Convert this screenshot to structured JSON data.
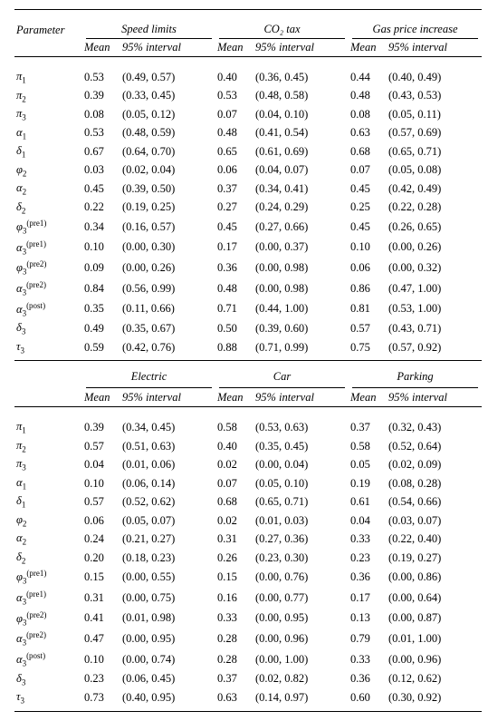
{
  "headers": {
    "parameter": "Parameter",
    "mean": "Mean",
    "interval": "95% interval"
  },
  "blocks": [
    {
      "groups": [
        "Speed limits",
        "CO₂ tax",
        "Gas price increase"
      ],
      "rows": [
        {
          "p": "π<sub>1</sub>",
          "v": [
            [
              "0.53",
              "(0.49, 0.57)"
            ],
            [
              "0.40",
              "(0.36, 0.45)"
            ],
            [
              "0.44",
              "(0.40, 0.49)"
            ]
          ]
        },
        {
          "p": "π<sub>2</sub>",
          "v": [
            [
              "0.39",
              "(0.33, 0.45)"
            ],
            [
              "0.53",
              "(0.48, 0.58)"
            ],
            [
              "0.48",
              "(0.43, 0.53)"
            ]
          ]
        },
        {
          "p": "π<sub>3</sub>",
          "v": [
            [
              "0.08",
              "(0.05, 0.12)"
            ],
            [
              "0.07",
              "(0.04, 0.10)"
            ],
            [
              "0.08",
              "(0.05, 0.11)"
            ]
          ]
        },
        {
          "p": "α<sub>1</sub>",
          "v": [
            [
              "0.53",
              "(0.48, 0.59)"
            ],
            [
              "0.48",
              "(0.41, 0.54)"
            ],
            [
              "0.63",
              "(0.57, 0.69)"
            ]
          ]
        },
        {
          "p": "δ<sub>1</sub>",
          "v": [
            [
              "0.67",
              "(0.64, 0.70)"
            ],
            [
              "0.65",
              "(0.61, 0.69)"
            ],
            [
              "0.68",
              "(0.65, 0.71)"
            ]
          ]
        },
        {
          "p": "φ<sub>2</sub>",
          "v": [
            [
              "0.03",
              "(0.02, 0.04)"
            ],
            [
              "0.06",
              "(0.04, 0.07)"
            ],
            [
              "0.07",
              "(0.05, 0.08)"
            ]
          ]
        },
        {
          "p": "α<sub>2</sub>",
          "v": [
            [
              "0.45",
              "(0.39, 0.50)"
            ],
            [
              "0.37",
              "(0.34, 0.41)"
            ],
            [
              "0.45",
              "(0.42, 0.49)"
            ]
          ]
        },
        {
          "p": "δ<sub>2</sub>",
          "v": [
            [
              "0.22",
              "(0.19, 0.25)"
            ],
            [
              "0.27",
              "(0.24, 0.29)"
            ],
            [
              "0.25",
              "(0.22, 0.28)"
            ]
          ]
        },
        {
          "p": "φ<sub>3</sub><sup>(pre1)</sup>",
          "v": [
            [
              "0.34",
              "(0.16, 0.57)"
            ],
            [
              "0.45",
              "(0.27, 0.66)"
            ],
            [
              "0.45",
              "(0.26, 0.65)"
            ]
          ]
        },
        {
          "p": "α<sub>3</sub><sup>(pre1)</sup>",
          "v": [
            [
              "0.10",
              "(0.00, 0.30)"
            ],
            [
              "0.17",
              "(0.00, 0.37)"
            ],
            [
              "0.10",
              "(0.00, 0.26)"
            ]
          ]
        },
        {
          "p": "φ<sub>3</sub><sup>(pre2)</sup>",
          "v": [
            [
              "0.09",
              "(0.00, 0.26)"
            ],
            [
              "0.36",
              "(0.00, 0.98)"
            ],
            [
              "0.06",
              "(0.00, 0.32)"
            ]
          ]
        },
        {
          "p": "α<sub>3</sub><sup>(pre2)</sup>",
          "v": [
            [
              "0.84",
              "(0.56, 0.99)"
            ],
            [
              "0.48",
              "(0.00, 0.98)"
            ],
            [
              "0.86",
              "(0.47, 1.00)"
            ]
          ]
        },
        {
          "p": "α<sub>3</sub><sup>(post)</sup>",
          "v": [
            [
              "0.35",
              "(0.11, 0.66)"
            ],
            [
              "0.71",
              "(0.44, 1.00)"
            ],
            [
              "0.81",
              "(0.53, 1.00)"
            ]
          ]
        },
        {
          "p": "δ<sub>3</sub>",
          "v": [
            [
              "0.49",
              "(0.35, 0.67)"
            ],
            [
              "0.50",
              "(0.39, 0.60)"
            ],
            [
              "0.57",
              "(0.43, 0.71)"
            ]
          ]
        },
        {
          "p": "τ<sub>3</sub>",
          "v": [
            [
              "0.59",
              "(0.42, 0.76)"
            ],
            [
              "0.88",
              "(0.71, 0.99)"
            ],
            [
              "0.75",
              "(0.57, 0.92)"
            ]
          ]
        }
      ]
    },
    {
      "groups": [
        "Electric",
        "Car",
        "Parking"
      ],
      "rows": [
        {
          "p": "π<sub>1</sub>",
          "v": [
            [
              "0.39",
              "(0.34, 0.45)"
            ],
            [
              "0.58",
              "(0.53, 0.63)"
            ],
            [
              "0.37",
              "(0.32, 0.43)"
            ]
          ]
        },
        {
          "p": "π<sub>2</sub>",
          "v": [
            [
              "0.57",
              "(0.51, 0.63)"
            ],
            [
              "0.40",
              "(0.35, 0.45)"
            ],
            [
              "0.58",
              "(0.52, 0.64)"
            ]
          ]
        },
        {
          "p": "π<sub>3</sub>",
          "v": [
            [
              "0.04",
              "(0.01, 0.06)"
            ],
            [
              "0.02",
              "(0.00, 0.04)"
            ],
            [
              "0.05",
              "(0.02, 0.09)"
            ]
          ]
        },
        {
          "p": "α<sub>1</sub>",
          "v": [
            [
              "0.10",
              "(0.06, 0.14)"
            ],
            [
              "0.07",
              "(0.05, 0.10)"
            ],
            [
              "0.19",
              "(0.08, 0.28)"
            ]
          ]
        },
        {
          "p": "δ<sub>1</sub>",
          "v": [
            [
              "0.57",
              "(0.52, 0.62)"
            ],
            [
              "0.68",
              "(0.65, 0.71)"
            ],
            [
              "0.61",
              "(0.54, 0.66)"
            ]
          ]
        },
        {
          "p": "φ<sub>2</sub>",
          "v": [
            [
              "0.06",
              "(0.05, 0.07)"
            ],
            [
              "0.02",
              "(0.01, 0.03)"
            ],
            [
              "0.04",
              "(0.03, 0.07)"
            ]
          ]
        },
        {
          "p": "α<sub>2</sub>",
          "v": [
            [
              "0.24",
              "(0.21, 0.27)"
            ],
            [
              "0.31",
              "(0.27, 0.36)"
            ],
            [
              "0.33",
              "(0.22, 0.40)"
            ]
          ]
        },
        {
          "p": "δ<sub>2</sub>",
          "v": [
            [
              "0.20",
              "(0.18, 0.23)"
            ],
            [
              "0.26",
              "(0.23, 0.30)"
            ],
            [
              "0.23",
              "(0.19, 0.27)"
            ]
          ]
        },
        {
          "p": "φ<sub>3</sub><sup>(pre1)</sup>",
          "v": [
            [
              "0.15",
              "(0.00, 0.55)"
            ],
            [
              "0.15",
              "(0.00, 0.76)"
            ],
            [
              "0.36",
              "(0.00, 0.86)"
            ]
          ]
        },
        {
          "p": "α<sub>3</sub><sup>(pre1)</sup>",
          "v": [
            [
              "0.31",
              "(0.00, 0.75)"
            ],
            [
              "0.16",
              "(0.00, 0.77)"
            ],
            [
              "0.17",
              "(0.00, 0.64)"
            ]
          ]
        },
        {
          "p": "φ<sub>3</sub><sup>(pre2)</sup>",
          "v": [
            [
              "0.41",
              "(0.01, 0.98)"
            ],
            [
              "0.33",
              "(0.00, 0.95)"
            ],
            [
              "0.13",
              "(0.00, 0.87)"
            ]
          ]
        },
        {
          "p": "α<sub>3</sub><sup>(pre2)</sup>",
          "v": [
            [
              "0.47",
              "(0.00, 0.95)"
            ],
            [
              "0.28",
              "(0.00, 0.96)"
            ],
            [
              "0.79",
              "(0.01, 1.00)"
            ]
          ]
        },
        {
          "p": "α<sub>3</sub><sup>(post)</sup>",
          "v": [
            [
              "0.10",
              "(0.00, 0.74)"
            ],
            [
              "0.28",
              "(0.00, 1.00)"
            ],
            [
              "0.33",
              "(0.00, 0.96)"
            ]
          ]
        },
        {
          "p": "δ<sub>3</sub>",
          "v": [
            [
              "0.23",
              "(0.06, 0.45)"
            ],
            [
              "0.37",
              "(0.02, 0.82)"
            ],
            [
              "0.36",
              "(0.12, 0.62)"
            ]
          ]
        },
        {
          "p": "τ<sub>3</sub>",
          "v": [
            [
              "0.73",
              "(0.40, 0.95)"
            ],
            [
              "0.63",
              "(0.14, 0.97)"
            ],
            [
              "0.60",
              "(0.30, 0.92)"
            ]
          ]
        }
      ]
    }
  ]
}
